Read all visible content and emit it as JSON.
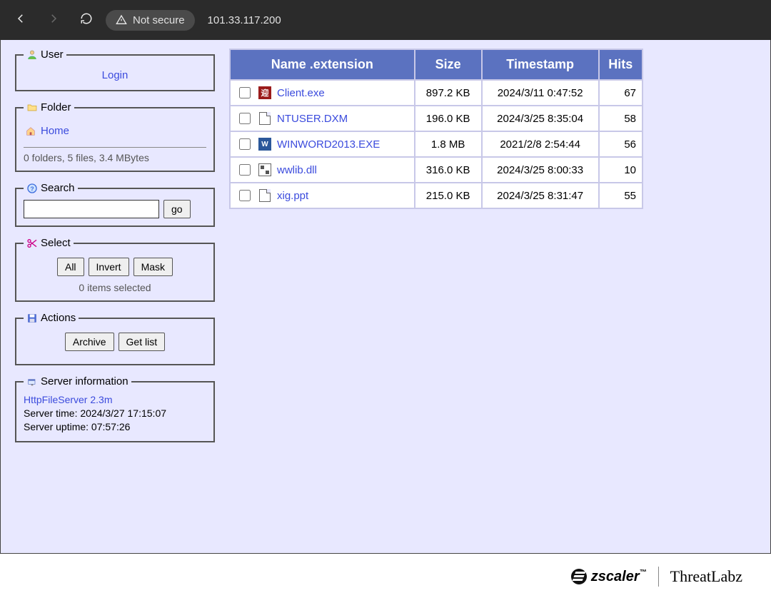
{
  "browser": {
    "not_secure_label": "Not secure",
    "url": "101.33.117.200"
  },
  "panels": {
    "user": {
      "legend": "User",
      "login": "Login"
    },
    "folder": {
      "legend": "Folder",
      "home": "Home",
      "summary": "0 folders, 5 files, 3.4 MBytes"
    },
    "search": {
      "legend": "Search",
      "go": "go",
      "value": ""
    },
    "select": {
      "legend": "Select",
      "all": "All",
      "invert": "Invert",
      "mask": "Mask",
      "status": "0 items selected"
    },
    "actions": {
      "legend": "Actions",
      "archive": "Archive",
      "getlist": "Get list"
    },
    "server": {
      "legend": "Server information",
      "link": "HttpFileServer 2.3m",
      "time": "Server time: 2024/3/27 17:15:07",
      "uptime": "Server uptime: 07:57:26"
    }
  },
  "table": {
    "headers": {
      "name": "Name .extension",
      "size": "Size",
      "timestamp": "Timestamp",
      "hits": "Hits"
    },
    "rows": [
      {
        "name": "Client.exe",
        "icon": "exe",
        "size": "897.2 KB",
        "ts": "2024/3/11 0:47:52",
        "hits": "67"
      },
      {
        "name": "NTUSER.DXM",
        "icon": "doc",
        "size": "196.0 KB",
        "ts": "2024/3/25 8:35:04",
        "hits": "58"
      },
      {
        "name": "WINWORD2013.EXE",
        "icon": "word",
        "size": "1.8 MB",
        "ts": "2021/2/8 2:54:44",
        "hits": "56"
      },
      {
        "name": "wwlib.dll",
        "icon": "dll",
        "size": "316.0 KB",
        "ts": "2024/3/25 8:00:33",
        "hits": "10"
      },
      {
        "name": "xig.ppt",
        "icon": "doc",
        "size": "215.0 KB",
        "ts": "2024/3/25 8:31:47",
        "hits": "55"
      }
    ]
  },
  "footer": {
    "zscaler": "zscaler",
    "threatlabz": "ThreatLabz"
  },
  "colors": {
    "page_bg": "#e8e8ff",
    "header_bg": "#5b72c0",
    "link": "#3b4bdd",
    "browser_bar": "#2b2b2b"
  }
}
